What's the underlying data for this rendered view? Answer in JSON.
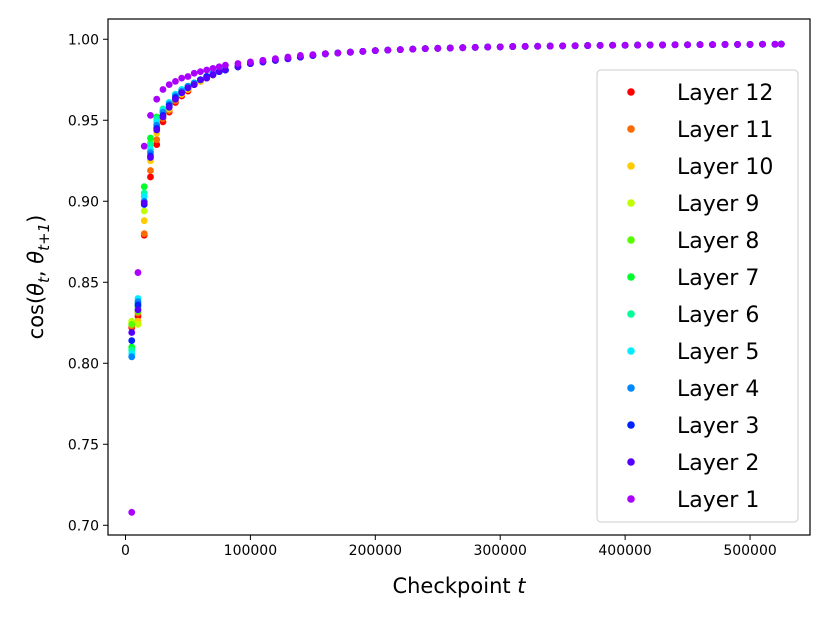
{
  "chart_data": {
    "type": "scatter",
    "xlabel": "Checkpoint",
    "xlabel_var": "t",
    "ylabel": "cos(θ_t, θ_{t+1})",
    "ylabel_parts": {
      "prefix": "cos(",
      "theta": "θ",
      "sub1": "t",
      "sep": ", ",
      "sub2": "t+1",
      "suffix": ")"
    },
    "xlim": [
      -14000,
      548000
    ],
    "ylim": [
      0.694,
      1.0125
    ],
    "xticks": [
      0,
      100000,
      200000,
      300000,
      400000,
      500000
    ],
    "xtick_labels": [
      "0",
      "100000",
      "200000",
      "300000",
      "400000",
      "500000"
    ],
    "yticks": [
      0.7,
      0.75,
      0.8,
      0.85,
      0.9,
      0.95,
      1.0
    ],
    "ytick_labels": [
      "0.70",
      "0.75",
      "0.80",
      "0.85",
      "0.90",
      "0.95",
      "1.00"
    ],
    "grid": false,
    "legend_position": "right",
    "x": [
      5000,
      10000,
      15000,
      20000,
      25000,
      30000,
      35000,
      40000,
      45000,
      50000,
      55000,
      60000,
      65000,
      70000,
      75000,
      80000,
      90000,
      100000,
      110000,
      120000,
      130000,
      140000,
      150000,
      160000,
      170000,
      180000,
      190000,
      200000,
      210000,
      220000,
      230000,
      240000,
      250000,
      260000,
      270000,
      280000,
      290000,
      300000,
      310000,
      320000,
      330000,
      340000,
      350000,
      360000,
      370000,
      380000,
      390000,
      400000,
      410000,
      420000,
      430000,
      440000,
      450000,
      460000,
      470000,
      480000,
      490000,
      500000,
      510000,
      520000,
      525000
    ],
    "series": [
      {
        "name": "Layer 12",
        "color": "#ff0000",
        "values": [
          0.822,
          0.829,
          0.879,
          0.915,
          0.935,
          0.949,
          0.955,
          0.961,
          0.965,
          0.968,
          0.972,
          0.974,
          0.976,
          0.978,
          0.98,
          0.981,
          0.983,
          0.985,
          0.986,
          0.987,
          0.988,
          0.989,
          0.99,
          0.991,
          0.9915,
          0.992,
          0.9925,
          0.993,
          0.9933,
          0.9936,
          0.9939,
          0.9942,
          0.9944,
          0.9946,
          0.9948,
          0.995,
          0.9952,
          0.9953,
          0.9955,
          0.9956,
          0.9957,
          0.9958,
          0.9959,
          0.996,
          0.9961,
          0.9962,
          0.9963,
          0.9963,
          0.9964,
          0.9965,
          0.9965,
          0.9966,
          0.9966,
          0.9967,
          0.9967,
          0.9968,
          0.9968,
          0.9968,
          0.9969,
          0.9969,
          0.997
        ]
      },
      {
        "name": "Layer 11",
        "color": "#ff6a00",
        "values": [
          0.823,
          0.831,
          0.88,
          0.919,
          0.938,
          0.951,
          0.956,
          0.962,
          0.966,
          0.969,
          0.972,
          0.974,
          0.976,
          0.978,
          0.98,
          0.981,
          0.983,
          0.985,
          0.986,
          0.987,
          0.988,
          0.989,
          0.99,
          0.991,
          0.9915,
          0.992,
          0.9925,
          0.993,
          0.9933,
          0.9936,
          0.9939,
          0.9942,
          0.9944,
          0.9946,
          0.9948,
          0.995,
          0.9952,
          0.9953,
          0.9955,
          0.9956,
          0.9957,
          0.9958,
          0.9959,
          0.996,
          0.9961,
          0.9962,
          0.9963,
          0.9963,
          0.9964,
          0.9965,
          0.9965,
          0.9966,
          0.9966,
          0.9967,
          0.9967,
          0.9968,
          0.9968,
          0.9968,
          0.9969,
          0.9969,
          0.997
        ]
      },
      {
        "name": "Layer 10",
        "color": "#ffcc00",
        "values": [
          0.825,
          0.826,
          0.888,
          0.925,
          0.942,
          0.952,
          0.957,
          0.963,
          0.966,
          0.969,
          0.972,
          0.974,
          0.976,
          0.978,
          0.98,
          0.981,
          0.983,
          0.985,
          0.986,
          0.987,
          0.988,
          0.989,
          0.99,
          0.991,
          0.9915,
          0.992,
          0.9925,
          0.993,
          0.9933,
          0.9936,
          0.9939,
          0.9942,
          0.9944,
          0.9946,
          0.9948,
          0.995,
          0.9952,
          0.9953,
          0.9955,
          0.9956,
          0.9957,
          0.9958,
          0.9959,
          0.996,
          0.9961,
          0.9962,
          0.9963,
          0.9963,
          0.9964,
          0.9965,
          0.9965,
          0.9966,
          0.9966,
          0.9967,
          0.9967,
          0.9968,
          0.9968,
          0.9968,
          0.9969,
          0.9969,
          0.997
        ]
      },
      {
        "name": "Layer 9",
        "color": "#c0ff00",
        "values": [
          0.826,
          0.824,
          0.894,
          0.931,
          0.946,
          0.953,
          0.958,
          0.964,
          0.967,
          0.97,
          0.973,
          0.975,
          0.977,
          0.978,
          0.98,
          0.981,
          0.983,
          0.985,
          0.986,
          0.987,
          0.988,
          0.989,
          0.99,
          0.991,
          0.9915,
          0.992,
          0.9925,
          0.993,
          0.9933,
          0.9936,
          0.9939,
          0.9942,
          0.9944,
          0.9946,
          0.9948,
          0.995,
          0.9952,
          0.9953,
          0.9955,
          0.9956,
          0.9957,
          0.9958,
          0.9959,
          0.996,
          0.9961,
          0.9962,
          0.9963,
          0.9963,
          0.9964,
          0.9965,
          0.9965,
          0.9966,
          0.9966,
          0.9967,
          0.9967,
          0.9968,
          0.9968,
          0.9968,
          0.9969,
          0.9969,
          0.997
        ]
      },
      {
        "name": "Layer 8",
        "color": "#55ff00",
        "values": [
          0.824,
          0.832,
          0.9,
          0.936,
          0.95,
          0.955,
          0.959,
          0.965,
          0.968,
          0.97,
          0.973,
          0.975,
          0.977,
          0.979,
          0.98,
          0.981,
          0.983,
          0.985,
          0.986,
          0.987,
          0.988,
          0.989,
          0.99,
          0.991,
          0.9915,
          0.992,
          0.9925,
          0.993,
          0.9933,
          0.9936,
          0.9939,
          0.9942,
          0.9944,
          0.9946,
          0.9948,
          0.995,
          0.9952,
          0.9953,
          0.9955,
          0.9956,
          0.9957,
          0.9958,
          0.9959,
          0.996,
          0.9961,
          0.9962,
          0.9963,
          0.9963,
          0.9964,
          0.9965,
          0.9965,
          0.9966,
          0.9966,
          0.9967,
          0.9967,
          0.9968,
          0.9968,
          0.9968,
          0.9969,
          0.9969,
          0.997
        ]
      },
      {
        "name": "Layer 7",
        "color": "#00ff2a",
        "values": [
          0.81,
          0.835,
          0.909,
          0.939,
          0.952,
          0.956,
          0.96,
          0.966,
          0.968,
          0.971,
          0.973,
          0.975,
          0.977,
          0.979,
          0.98,
          0.981,
          0.983,
          0.985,
          0.986,
          0.987,
          0.988,
          0.989,
          0.99,
          0.991,
          0.9915,
          0.992,
          0.9925,
          0.993,
          0.9933,
          0.9936,
          0.9939,
          0.9942,
          0.9944,
          0.9946,
          0.9948,
          0.995,
          0.9952,
          0.9953,
          0.9955,
          0.9956,
          0.9957,
          0.9958,
          0.9959,
          0.996,
          0.9961,
          0.9962,
          0.9963,
          0.9963,
          0.9964,
          0.9965,
          0.9965,
          0.9966,
          0.9966,
          0.9967,
          0.9967,
          0.9968,
          0.9968,
          0.9968,
          0.9969,
          0.9969,
          0.997
        ]
      },
      {
        "name": "Layer 6",
        "color": "#00ff99",
        "values": [
          0.808,
          0.837,
          0.905,
          0.935,
          0.951,
          0.957,
          0.961,
          0.966,
          0.969,
          0.971,
          0.973,
          0.975,
          0.977,
          0.979,
          0.98,
          0.981,
          0.983,
          0.985,
          0.986,
          0.987,
          0.988,
          0.989,
          0.99,
          0.991,
          0.9915,
          0.992,
          0.9925,
          0.993,
          0.9933,
          0.9936,
          0.9939,
          0.9942,
          0.9944,
          0.9946,
          0.9948,
          0.995,
          0.9952,
          0.9953,
          0.9955,
          0.9956,
          0.9957,
          0.9958,
          0.9959,
          0.996,
          0.9961,
          0.9962,
          0.9963,
          0.9963,
          0.9964,
          0.9965,
          0.9965,
          0.9966,
          0.9966,
          0.9967,
          0.9967,
          0.9968,
          0.9968,
          0.9968,
          0.9969,
          0.9969,
          0.997
        ]
      },
      {
        "name": "Layer 5",
        "color": "#00eeff",
        "values": [
          0.806,
          0.84,
          0.903,
          0.932,
          0.949,
          0.956,
          0.961,
          0.966,
          0.969,
          0.971,
          0.973,
          0.975,
          0.977,
          0.979,
          0.98,
          0.981,
          0.983,
          0.985,
          0.986,
          0.987,
          0.988,
          0.989,
          0.99,
          0.991,
          0.9915,
          0.992,
          0.9925,
          0.993,
          0.9933,
          0.9936,
          0.9939,
          0.9942,
          0.9944,
          0.9946,
          0.9948,
          0.995,
          0.9952,
          0.9953,
          0.9955,
          0.9956,
          0.9957,
          0.9958,
          0.9959,
          0.996,
          0.9961,
          0.9962,
          0.9963,
          0.9963,
          0.9964,
          0.9965,
          0.9965,
          0.9966,
          0.9966,
          0.9967,
          0.9967,
          0.9968,
          0.9968,
          0.9968,
          0.9969,
          0.9969,
          0.997
        ]
      },
      {
        "name": "Layer 4",
        "color": "#0088ff",
        "values": [
          0.804,
          0.838,
          0.9,
          0.93,
          0.947,
          0.955,
          0.96,
          0.965,
          0.968,
          0.971,
          0.973,
          0.975,
          0.977,
          0.979,
          0.98,
          0.981,
          0.983,
          0.985,
          0.986,
          0.987,
          0.988,
          0.989,
          0.99,
          0.991,
          0.9915,
          0.992,
          0.9925,
          0.993,
          0.9933,
          0.9936,
          0.9939,
          0.9942,
          0.9944,
          0.9946,
          0.9948,
          0.995,
          0.9952,
          0.9953,
          0.9955,
          0.9956,
          0.9957,
          0.9958,
          0.9959,
          0.996,
          0.9961,
          0.9962,
          0.9963,
          0.9963,
          0.9964,
          0.9965,
          0.9965,
          0.9966,
          0.9966,
          0.9967,
          0.9967,
          0.9968,
          0.9968,
          0.9968,
          0.9969,
          0.9969,
          0.997
        ]
      },
      {
        "name": "Layer 3",
        "color": "#0022ff",
        "values": [
          0.814,
          0.836,
          0.898,
          0.928,
          0.945,
          0.953,
          0.959,
          0.964,
          0.967,
          0.97,
          0.972,
          0.975,
          0.977,
          0.978,
          0.98,
          0.981,
          0.983,
          0.985,
          0.986,
          0.987,
          0.988,
          0.989,
          0.99,
          0.991,
          0.9915,
          0.992,
          0.9925,
          0.993,
          0.9933,
          0.9936,
          0.9939,
          0.9942,
          0.9944,
          0.9946,
          0.9948,
          0.995,
          0.9952,
          0.9953,
          0.9955,
          0.9956,
          0.9957,
          0.9958,
          0.9959,
          0.996,
          0.9961,
          0.9962,
          0.9963,
          0.9963,
          0.9964,
          0.9965,
          0.9965,
          0.9966,
          0.9966,
          0.9967,
          0.9967,
          0.9968,
          0.9968,
          0.9968,
          0.9969,
          0.9969,
          0.997
        ]
      },
      {
        "name": "Layer 2",
        "color": "#5500ff",
        "values": [
          0.819,
          0.833,
          0.899,
          0.927,
          0.944,
          0.952,
          0.958,
          0.963,
          0.967,
          0.97,
          0.972,
          0.975,
          0.976,
          0.978,
          0.98,
          0.981,
          0.983,
          0.985,
          0.986,
          0.987,
          0.988,
          0.989,
          0.99,
          0.991,
          0.9915,
          0.992,
          0.9925,
          0.993,
          0.9933,
          0.9936,
          0.9939,
          0.9942,
          0.9944,
          0.9946,
          0.9948,
          0.995,
          0.9952,
          0.9953,
          0.9955,
          0.9956,
          0.9957,
          0.9958,
          0.9959,
          0.996,
          0.9961,
          0.9962,
          0.9963,
          0.9963,
          0.9964,
          0.9965,
          0.9965,
          0.9966,
          0.9966,
          0.9967,
          0.9967,
          0.9968,
          0.9968,
          0.9968,
          0.9969,
          0.9969,
          0.997
        ]
      },
      {
        "name": "Layer 1",
        "color": "#aa00ff",
        "values": [
          0.708,
          0.856,
          0.934,
          0.953,
          0.963,
          0.969,
          0.972,
          0.974,
          0.976,
          0.977,
          0.979,
          0.98,
          0.981,
          0.982,
          0.983,
          0.984,
          0.985,
          0.986,
          0.987,
          0.988,
          0.989,
          0.99,
          0.9905,
          0.991,
          0.9915,
          0.992,
          0.9925,
          0.993,
          0.9933,
          0.9936,
          0.9939,
          0.9942,
          0.9944,
          0.9946,
          0.9948,
          0.995,
          0.9952,
          0.9953,
          0.9955,
          0.9956,
          0.9957,
          0.9958,
          0.9959,
          0.996,
          0.9961,
          0.9962,
          0.9963,
          0.9963,
          0.9964,
          0.9965,
          0.9965,
          0.9966,
          0.9966,
          0.9967,
          0.9967,
          0.9968,
          0.9968,
          0.9968,
          0.9969,
          0.9969,
          0.997
        ]
      }
    ]
  }
}
